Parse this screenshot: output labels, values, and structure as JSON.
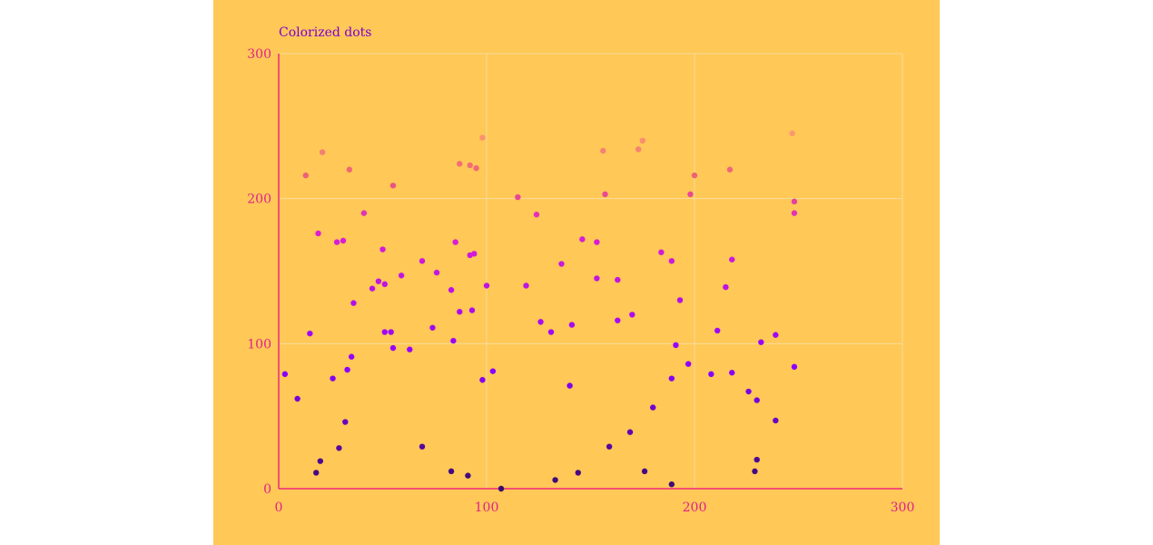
{
  "chart_data": {
    "type": "scatter",
    "title": "Colorized dots",
    "xlabel": "",
    "ylabel": "",
    "xlim": [
      0,
      300
    ],
    "ylim": [
      0,
      300
    ],
    "x_ticks": [
      "0",
      "100",
      "200",
      "300"
    ],
    "y_ticks": [
      "0",
      "100",
      "200",
      "300"
    ],
    "grid": true,
    "legend": "none",
    "colors": {
      "background": "#FFC857",
      "axis": "#F0287A",
      "grid": "#F6DC9A",
      "tick_text": "#E0218A",
      "title": "#7B00D4",
      "dot_low": "#3C0A6E",
      "dot_mid": "#8B00FF",
      "dot_high": "#E020D0",
      "dot_top": "#FFA070"
    },
    "points": [
      {
        "x": 3,
        "y": 79
      },
      {
        "x": 9,
        "y": 62
      },
      {
        "x": 13,
        "y": 216
      },
      {
        "x": 15,
        "y": 107
      },
      {
        "x": 18,
        "y": 11
      },
      {
        "x": 19,
        "y": 176
      },
      {
        "x": 20,
        "y": 19
      },
      {
        "x": 21,
        "y": 232
      },
      {
        "x": 26,
        "y": 76
      },
      {
        "x": 28,
        "y": 170
      },
      {
        "x": 29,
        "y": 28
      },
      {
        "x": 31,
        "y": 171
      },
      {
        "x": 32,
        "y": 46
      },
      {
        "x": 33,
        "y": 82
      },
      {
        "x": 34,
        "y": 220
      },
      {
        "x": 35,
        "y": 91
      },
      {
        "x": 36,
        "y": 128
      },
      {
        "x": 41,
        "y": 190
      },
      {
        "x": 45,
        "y": 138
      },
      {
        "x": 48,
        "y": 143
      },
      {
        "x": 50,
        "y": 165
      },
      {
        "x": 51,
        "y": 141
      },
      {
        "x": 51,
        "y": 108
      },
      {
        "x": 54,
        "y": 108
      },
      {
        "x": 55,
        "y": 97
      },
      {
        "x": 55,
        "y": 209
      },
      {
        "x": 59,
        "y": 147
      },
      {
        "x": 63,
        "y": 96
      },
      {
        "x": 69,
        "y": 157
      },
      {
        "x": 69,
        "y": 29
      },
      {
        "x": 74,
        "y": 111
      },
      {
        "x": 76,
        "y": 149
      },
      {
        "x": 83,
        "y": 137
      },
      {
        "x": 83,
        "y": 12
      },
      {
        "x": 84,
        "y": 102
      },
      {
        "x": 85,
        "y": 170
      },
      {
        "x": 87,
        "y": 122
      },
      {
        "x": 87,
        "y": 224
      },
      {
        "x": 91,
        "y": 9
      },
      {
        "x": 92,
        "y": 223
      },
      {
        "x": 92,
        "y": 161
      },
      {
        "x": 93,
        "y": 123
      },
      {
        "x": 94,
        "y": 162
      },
      {
        "x": 95,
        "y": 221
      },
      {
        "x": 98,
        "y": 242
      },
      {
        "x": 98,
        "y": 75
      },
      {
        "x": 100,
        "y": 140
      },
      {
        "x": 103,
        "y": 81
      },
      {
        "x": 107,
        "y": 0
      },
      {
        "x": 115,
        "y": 201
      },
      {
        "x": 119,
        "y": 140
      },
      {
        "x": 124,
        "y": 189
      },
      {
        "x": 126,
        "y": 115
      },
      {
        "x": 131,
        "y": 108
      },
      {
        "x": 133,
        "y": 6
      },
      {
        "x": 136,
        "y": 155
      },
      {
        "x": 140,
        "y": 71
      },
      {
        "x": 141,
        "y": 113
      },
      {
        "x": 144,
        "y": 11
      },
      {
        "x": 146,
        "y": 172
      },
      {
        "x": 153,
        "y": 170
      },
      {
        "x": 153,
        "y": 145
      },
      {
        "x": 156,
        "y": 233
      },
      {
        "x": 157,
        "y": 203
      },
      {
        "x": 159,
        "y": 29
      },
      {
        "x": 163,
        "y": 144
      },
      {
        "x": 163,
        "y": 116
      },
      {
        "x": 169,
        "y": 39
      },
      {
        "x": 170,
        "y": 120
      },
      {
        "x": 173,
        "y": 234
      },
      {
        "x": 175,
        "y": 240
      },
      {
        "x": 176,
        "y": 12
      },
      {
        "x": 180,
        "y": 56
      },
      {
        "x": 184,
        "y": 163
      },
      {
        "x": 189,
        "y": 157
      },
      {
        "x": 189,
        "y": 76
      },
      {
        "x": 189,
        "y": 3
      },
      {
        "x": 191,
        "y": 99
      },
      {
        "x": 193,
        "y": 130
      },
      {
        "x": 197,
        "y": 86
      },
      {
        "x": 198,
        "y": 203
      },
      {
        "x": 200,
        "y": 216
      },
      {
        "x": 208,
        "y": 79
      },
      {
        "x": 211,
        "y": 109
      },
      {
        "x": 215,
        "y": 139
      },
      {
        "x": 217,
        "y": 220
      },
      {
        "x": 218,
        "y": 158
      },
      {
        "x": 218,
        "y": 80
      },
      {
        "x": 226,
        "y": 67
      },
      {
        "x": 229,
        "y": 12
      },
      {
        "x": 230,
        "y": 61
      },
      {
        "x": 230,
        "y": 20
      },
      {
        "x": 232,
        "y": 101
      },
      {
        "x": 239,
        "y": 106
      },
      {
        "x": 239,
        "y": 47
      },
      {
        "x": 247,
        "y": 245
      },
      {
        "x": 248,
        "y": 198
      },
      {
        "x": 248,
        "y": 190
      },
      {
        "x": 248,
        "y": 84
      }
    ]
  }
}
